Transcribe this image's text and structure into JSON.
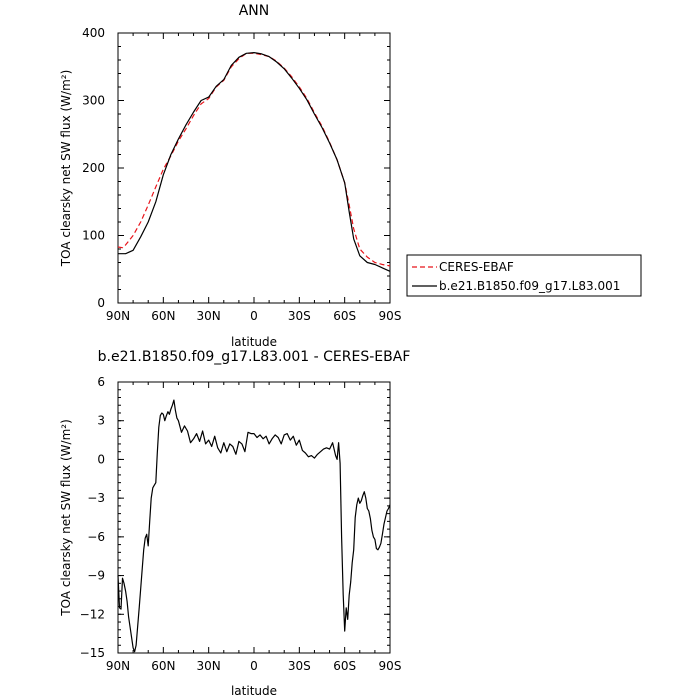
{
  "chart_data": [
    {
      "type": "line",
      "title": "ANN",
      "xlabel": "latitude",
      "ylabel": "TOA clearsky net SW flux (W/m²)",
      "xlim": [
        90,
        -90
      ],
      "ylim": [
        0,
        400
      ],
      "x_ticks": [
        90,
        60,
        30,
        0,
        -30,
        -60,
        -90
      ],
      "x_tick_labels": [
        "90N",
        "60N",
        "30N",
        "0",
        "30S",
        "60S",
        "90S"
      ],
      "y_ticks": [
        0,
        100,
        200,
        300,
        400
      ],
      "y_tick_labels": [
        "0",
        "100",
        "200",
        "300",
        "400"
      ],
      "legend_position": "outside-right",
      "series": [
        {
          "name": "CERES-EBAF",
          "style": "dashed",
          "color": "#e8141a",
          "x": [
            90,
            87,
            85,
            80,
            75,
            70,
            65,
            60,
            55,
            50,
            45,
            40,
            35,
            30,
            25,
            20,
            15,
            10,
            5,
            0,
            -5,
            -10,
            -15,
            -20,
            -25,
            -30,
            -35,
            -40,
            -45,
            -50,
            -55,
            -60,
            -63,
            -66,
            -70,
            -75,
            -80,
            -85,
            -90
          ],
          "y": [
            83,
            82,
            86,
            100,
            120,
            145,
            172,
            198,
            218,
            240,
            258,
            278,
            295,
            303,
            320,
            330,
            350,
            362,
            370,
            370,
            368,
            365,
            358,
            348,
            335,
            320,
            303,
            282,
            262,
            238,
            212,
            178,
            145,
            110,
            80,
            68,
            60,
            57,
            55
          ]
        },
        {
          "name": "b.e21.B1850.f09_g17.L83.001",
          "style": "solid",
          "color": "#000000",
          "x": [
            90,
            85,
            80,
            75,
            70,
            65,
            60,
            55,
            50,
            45,
            40,
            35,
            30,
            25,
            20,
            15,
            10,
            5,
            0,
            -5,
            -10,
            -15,
            -20,
            -25,
            -30,
            -35,
            -40,
            -45,
            -50,
            -55,
            -60,
            -63,
            -66,
            -70,
            -75,
            -80,
            -85,
            -90
          ],
          "y": [
            73,
            73,
            78,
            98,
            120,
            150,
            190,
            220,
            243,
            264,
            283,
            300,
            305,
            321,
            331,
            352,
            364,
            370,
            371,
            369,
            365,
            357,
            347,
            333,
            318,
            301,
            280,
            260,
            237,
            212,
            178,
            135,
            95,
            70,
            60,
            57,
            52,
            47
          ]
        }
      ]
    },
    {
      "type": "line",
      "title": "b.e21.B1850.f09_g17.L83.001 - CERES-EBAF",
      "xlabel": "latitude",
      "ylabel": "TOA clearsky net SW flux (W/m²)",
      "xlim": [
        90,
        -90
      ],
      "ylim": [
        -15,
        6
      ],
      "x_ticks": [
        90,
        60,
        30,
        0,
        -30,
        -60,
        -90
      ],
      "x_tick_labels": [
        "90N",
        "60N",
        "30N",
        "0",
        "30S",
        "60S",
        "90S"
      ],
      "y_ticks": [
        6,
        3,
        0,
        -3,
        -6,
        -9,
        -12,
        -15
      ],
      "y_tick_labels": [
        "6",
        "3",
        "0",
        "−3",
        "−6",
        "−9",
        "−12",
        "−15"
      ],
      "series": [
        {
          "style": "solid",
          "color": "#000000",
          "x": [
            90,
            89,
            88,
            87,
            86,
            85,
            84,
            83,
            82,
            81,
            80,
            79,
            78,
            77,
            76,
            75,
            74,
            73,
            72,
            71,
            70,
            69,
            68,
            67,
            66,
            65,
            64,
            63,
            62,
            61,
            60,
            59,
            58,
            57,
            56,
            55,
            54,
            53,
            52,
            51,
            50,
            48,
            46,
            44,
            42,
            40,
            38,
            36,
            34,
            32,
            30,
            28,
            26,
            24,
            22,
            20,
            18,
            16,
            14,
            12,
            10,
            8,
            6,
            4,
            2,
            0,
            -2,
            -4,
            -6,
            -8,
            -10,
            -12,
            -14,
            -16,
            -18,
            -20,
            -22,
            -24,
            -26,
            -28,
            -30,
            -32,
            -34,
            -36,
            -38,
            -40,
            -42,
            -44,
            -46,
            -48,
            -50,
            -52,
            -54,
            -55,
            -56,
            -57,
            -58,
            -59,
            -60,
            -61,
            -62,
            -63,
            -64,
            -65,
            -66,
            -67,
            -68,
            -69,
            -70,
            -71,
            -72,
            -73,
            -74,
            -75,
            -76,
            -77,
            -78,
            -79,
            -80,
            -81,
            -82,
            -83,
            -84,
            -85,
            -86,
            -87,
            -88,
            -89,
            -90
          ],
          "y": [
            -9,
            -11.5,
            -11.6,
            -9.2,
            -9.6,
            -10.2,
            -11,
            -12.2,
            -13,
            -13.8,
            -14.6,
            -14.9,
            -14.4,
            -13,
            -11.5,
            -10,
            -8.5,
            -7,
            -6.1,
            -5.8,
            -6.7,
            -4.8,
            -3,
            -2.2,
            -2,
            -1.8,
            0.5,
            2.5,
            3.4,
            3.6,
            3.5,
            3.0,
            3.4,
            3.7,
            3.5,
            3.9,
            4.2,
            4.6,
            3.8,
            3.2,
            3.0,
            2.1,
            2.6,
            2.2,
            1.3,
            1.6,
            2.0,
            1.4,
            2.2,
            1.2,
            1.5,
            1.0,
            1.8,
            0.9,
            0.5,
            1.3,
            0.6,
            1.2,
            1.0,
            0.4,
            1.4,
            1.2,
            0.6,
            2.1,
            2.0,
            2.0,
            1.7,
            1.9,
            1.6,
            1.8,
            1.2,
            1.6,
            1.9,
            1.7,
            1.2,
            1.9,
            2.0,
            1.5,
            1.8,
            1.1,
            1.5,
            0.7,
            0.5,
            0.2,
            0.3,
            0.1,
            0.4,
            0.6,
            0.8,
            0.9,
            0.8,
            1.3,
            0.3,
            0.0,
            1.3,
            -0.3,
            -6,
            -10.5,
            -13.3,
            -11.5,
            -12.4,
            -10.5,
            -9.5,
            -8.0,
            -7.0,
            -4.5,
            -3.5,
            -3.0,
            -3.4,
            -3.2,
            -2.8,
            -2.5,
            -3.0,
            -3.8,
            -4.0,
            -4.6,
            -5.5,
            -6.0,
            -6.2,
            -6.9,
            -7.0,
            -6.8,
            -6.5,
            -5.8,
            -5.0,
            -4.5,
            -4.0,
            -3.8,
            -3.5
          ]
        }
      ]
    }
  ]
}
